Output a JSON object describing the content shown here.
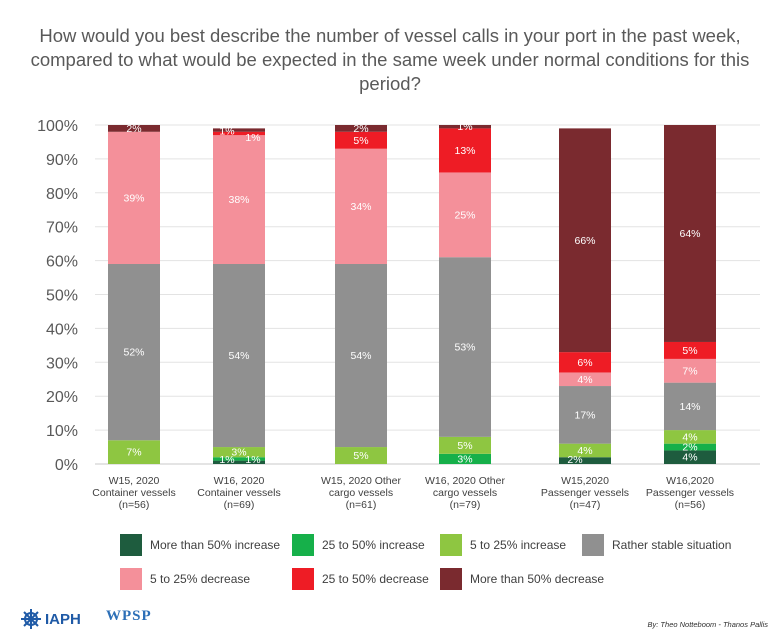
{
  "chart_data": {
    "type": "bar",
    "stacked": true,
    "title": "How would you best describe the number of vessel calls in your port in the past week, compared to what would be expected in the same week under normal conditions for this period?",
    "ylim": [
      0,
      100
    ],
    "y_ticks": [
      "0%",
      "10%",
      "20%",
      "30%",
      "40%",
      "50%",
      "60%",
      "70%",
      "80%",
      "90%",
      "100%"
    ],
    "categories": [
      [
        "W15, 2020",
        "Container vessels",
        "(n=56)"
      ],
      [
        "W16, 2020",
        "Container vessels",
        "(n=69)"
      ],
      [
        "W15, 2020 Other",
        "cargo vessels",
        "(n=61)"
      ],
      [
        "W16, 2020 Other",
        "cargo vessels",
        "(n=79)"
      ],
      [
        "W15,2020",
        "Passenger vessels",
        "(n=47)"
      ],
      [
        "W16,2020",
        "Passenger vessels",
        "(n=56)"
      ]
    ],
    "series": [
      {
        "name": "More than 50% increase",
        "color": "#1e5c3e",
        "values": [
          0,
          1,
          0,
          0,
          2,
          4
        ],
        "labels": [
          "",
          "1%",
          "",
          "",
          "2%",
          "4%"
        ]
      },
      {
        "name": "25 to 50% increase",
        "color": "#16b04a",
        "values": [
          0,
          1,
          0,
          3,
          0,
          2
        ],
        "labels": [
          "",
          "1%",
          "",
          "3%",
          "",
          "2%"
        ]
      },
      {
        "name": "5 to 25% increase",
        "color": "#8ec641",
        "values": [
          7,
          3,
          5,
          5,
          4,
          4
        ],
        "labels": [
          "7%",
          "3%",
          "5%",
          "5%",
          "4%",
          "4%"
        ]
      },
      {
        "name": "Rather stable situation",
        "color": "#909090",
        "values": [
          52,
          54,
          54,
          53,
          17,
          14
        ],
        "labels": [
          "52%",
          "54%",
          "54%",
          "53%",
          "17%",
          "14%"
        ]
      },
      {
        "name": "5 to 25% decrease",
        "color": "#f4909a",
        "values": [
          39,
          38,
          34,
          25,
          4,
          7
        ],
        "labels": [
          "39%",
          "38%",
          "34%",
          "25%",
          "4%",
          "7%"
        ]
      },
      {
        "name": "25 to 50% decrease",
        "color": "#ee1c25",
        "values": [
          0,
          1,
          5,
          13,
          6,
          5
        ],
        "labels": [
          "",
          "1%",
          "5%",
          "13%",
          "6%",
          "5%"
        ]
      },
      {
        "name": "More than 50% decrease",
        "color": "#7a2a2f",
        "values": [
          2,
          1,
          2,
          1,
          66,
          64
        ],
        "labels": [
          "2%",
          "1%",
          "2%",
          "1%",
          "66%",
          "64%"
        ]
      }
    ],
    "legend_position": "bottom"
  },
  "footer": {
    "logo1": "IAPH",
    "logo2": "WPSP",
    "credit": "By: Theo Notteboom - Thanos Pallis"
  },
  "colors": {
    "iaph_blue": "#1f5aa6",
    "wpsp_blue": "#2c6fb7"
  }
}
